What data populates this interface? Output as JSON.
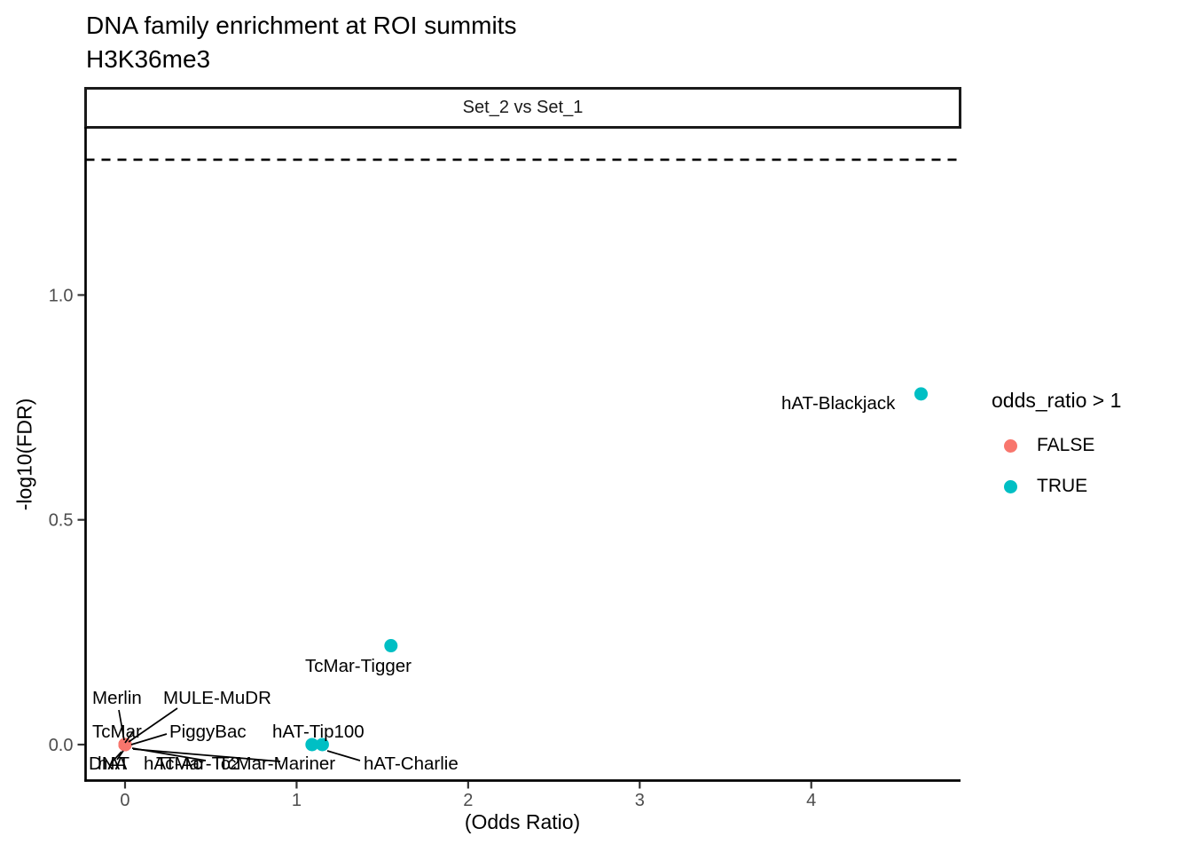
{
  "chart_data": {
    "type": "scatter",
    "title": "DNA family enrichment at ROI summits",
    "subtitle": "H3K36me3",
    "facet_label": "Set_2 vs Set_1",
    "xlabel": "(Odds Ratio)",
    "ylabel": "-log10(FDR)",
    "xlim": [
      -0.23,
      4.87
    ],
    "ylim": [
      -0.08,
      1.37
    ],
    "grid": false,
    "x_ticks": [
      {
        "v": 0,
        "label": "0"
      },
      {
        "v": 1,
        "label": "1"
      },
      {
        "v": 2,
        "label": "2"
      },
      {
        "v": 3,
        "label": "3"
      },
      {
        "v": 4,
        "label": "4"
      }
    ],
    "y_ticks": [
      {
        "v": 0,
        "label": "0.0"
      },
      {
        "v": 0.5,
        "label": "0.5"
      },
      {
        "v": 1,
        "label": "1.0"
      }
    ],
    "threshold_line": {
      "y": 1.301,
      "style": "dashed",
      "color": "#000000"
    },
    "legend": {
      "title": "odds_ratio > 1",
      "position": "right",
      "items": [
        {
          "label": "FALSE",
          "color": "#F8766D"
        },
        {
          "label": "TRUE",
          "color": "#00BFC4"
        }
      ]
    },
    "axis_text_color": "#4d4d4d",
    "points": [
      {
        "label": "DNA",
        "x": 0,
        "y": 0,
        "group": "FALSE"
      },
      {
        "label": "hAT",
        "x": 0,
        "y": 0,
        "group": "FALSE"
      },
      {
        "label": "hAT-Ac",
        "x": 0,
        "y": 0,
        "group": "FALSE"
      },
      {
        "label": "Merlin",
        "x": 0,
        "y": 0,
        "group": "FALSE"
      },
      {
        "label": "MULE-MuDR",
        "x": 0,
        "y": 0,
        "group": "FALSE"
      },
      {
        "label": "PiggyBac",
        "x": 0,
        "y": 0,
        "group": "FALSE"
      },
      {
        "label": "TcMar",
        "x": 0,
        "y": 0,
        "group": "FALSE"
      },
      {
        "label": "TcMar-Mariner",
        "x": 0,
        "y": 0,
        "group": "FALSE"
      },
      {
        "label": "TcMar-Tc2",
        "x": 0,
        "y": 0,
        "group": "FALSE"
      },
      {
        "label": "hAT-Tip100",
        "x": 1.09,
        "y": 0,
        "group": "TRUE"
      },
      {
        "label": "hAT-Charlie",
        "x": 1.15,
        "y": 0,
        "group": "TRUE"
      },
      {
        "label": "TcMar-Tigger",
        "x": 1.55,
        "y": 0.22,
        "group": "TRUE"
      },
      {
        "label": "hAT-Blackjack",
        "x": 4.64,
        "y": 0.78,
        "group": "TRUE"
      }
    ]
  }
}
